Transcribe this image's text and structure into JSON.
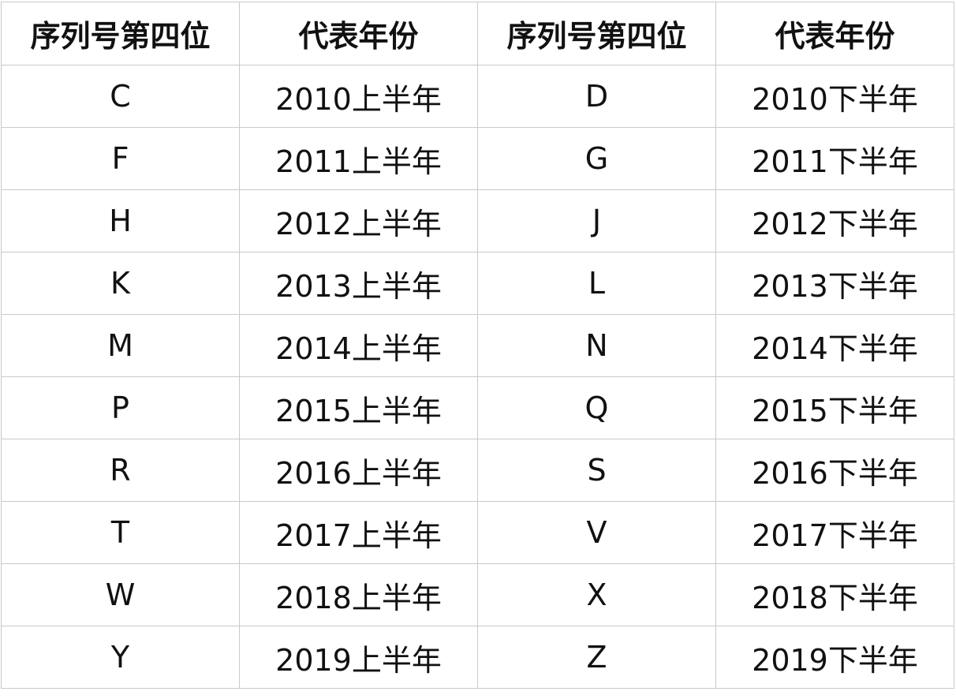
{
  "headers": [
    "序列号第四位",
    "代表年份",
    "序列号第四位",
    "代表年份"
  ],
  "rows": [
    [
      "C",
      "2010上半年",
      "D",
      "2010下半年"
    ],
    [
      "F",
      "2011上半年",
      "G",
      "2011下半年"
    ],
    [
      "H",
      "2012上半年",
      "J",
      "2012下半年"
    ],
    [
      "K",
      "2013上半年",
      "L",
      "2013下半年"
    ],
    [
      "M",
      "2014上半年",
      "N",
      "2014下半年"
    ],
    [
      "P",
      "2015上半年",
      "Q",
      "2015下半年"
    ],
    [
      "R",
      "2016上半年",
      "S",
      "2016下半年"
    ],
    [
      "T",
      "2017上半年",
      "V",
      "2017下半年"
    ],
    [
      "W",
      "2018上半年",
      "X",
      "2018下半年"
    ],
    [
      "Y",
      "2019上半年",
      "Z",
      "2019下半年"
    ]
  ]
}
